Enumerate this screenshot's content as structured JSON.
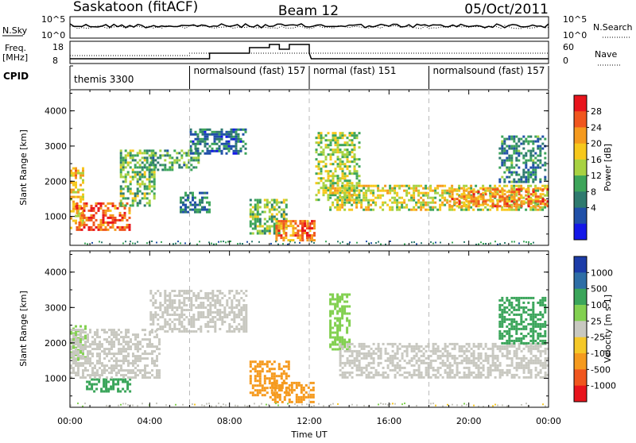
{
  "header": {
    "title_left": "Saskatoon (fitACF)",
    "title_center": "Beam 12",
    "title_right": "05/Oct/2011"
  },
  "status_panels": {
    "nsky_label": "N.Sky",
    "nsky_ticks": [
      "10^5",
      "10^0"
    ],
    "nsearch_label": "N.Search",
    "nsearch_ticks": [
      "10^5",
      "10^0"
    ],
    "freq_label_1": "Freq.",
    "freq_label_2": "[MHz]",
    "freq_ticks": [
      "18",
      "8"
    ],
    "nave_label": "Nave",
    "nave_ticks": [
      "60",
      "0"
    ],
    "cpid_label": "CPID"
  },
  "chart_data": [
    {
      "type": "heatmap",
      "name": "power",
      "ylabel": "Slant Range [km]",
      "ylim": [
        180,
        4600
      ],
      "yticks": [
        "1000",
        "2000",
        "3000",
        "4000"
      ],
      "colorbar_label": "Power [dB]",
      "colorbar_ticks": [
        "28",
        "24",
        "20",
        "16",
        "12",
        "8",
        "4"
      ],
      "colorbar_colors": [
        "#e8141c",
        "#f0561e",
        "#f59a1e",
        "#f7c81c",
        "#a8d242",
        "#3da55a",
        "#2e7a6e",
        "#2050a8",
        "#1418e8"
      ],
      "regions": [
        {
          "t": [
            0.0,
            0.6
          ],
          "r": [
            700,
            2400
          ],
          "level": 20
        },
        {
          "t": [
            0.3,
            3.0
          ],
          "r": [
            600,
            1400
          ],
          "level": 26
        },
        {
          "t": [
            2.5,
            4.2
          ],
          "r": [
            1300,
            2900
          ],
          "level": 14
        },
        {
          "t": [
            4.0,
            6.5
          ],
          "r": [
            2300,
            2900
          ],
          "level": 12
        },
        {
          "t": [
            6.0,
            8.8
          ],
          "r": [
            2800,
            3500
          ],
          "level": 8
        },
        {
          "t": [
            5.5,
            7.0
          ],
          "r": [
            1100,
            1700
          ],
          "level": 9
        },
        {
          "t": [
            9.0,
            10.8
          ],
          "r": [
            500,
            1500
          ],
          "level": 14
        },
        {
          "t": [
            10.3,
            12.0
          ],
          "r": [
            300,
            900
          ],
          "level": 24
        },
        {
          "t": [
            11.6,
            12.2
          ],
          "r": [
            300,
            900
          ],
          "level": 28
        },
        {
          "t": [
            12.3,
            14.5
          ],
          "r": [
            1500,
            3400
          ],
          "level": 16
        },
        {
          "t": [
            13.0,
            24.0
          ],
          "r": [
            1200,
            1900
          ],
          "level": 18
        },
        {
          "t": [
            19.0,
            24.0
          ],
          "r": [
            1300,
            1800
          ],
          "level": 24
        },
        {
          "t": [
            21.5,
            23.8
          ],
          "r": [
            2000,
            3300
          ],
          "level": 10
        }
      ]
    },
    {
      "type": "heatmap",
      "name": "velocity",
      "ylabel": "Slant Range [km]",
      "ylim": [
        180,
        4600
      ],
      "yticks": [
        "1000",
        "2000",
        "3000",
        "4000"
      ],
      "colorbar_label": "Velocity [m s-1]",
      "colorbar_ticks": [
        "1000",
        "500",
        "100",
        "25",
        "-25",
        "-100",
        "-500",
        "-1000"
      ],
      "colorbar_colors": [
        "#1c3ca8",
        "#2e6ea6",
        "#3aa55a",
        "#82d050",
        "#c8c8c0",
        "#f5c828",
        "#f59a1e",
        "#f0561e",
        "#e8141c"
      ],
      "regions": [
        {
          "t": [
            0.0,
            0.8
          ],
          "r": [
            1500,
            2500
          ],
          "v": 80
        },
        {
          "t": [
            0.8,
            3.0
          ],
          "r": [
            600,
            1000
          ],
          "v": 150
        },
        {
          "t": [
            0.0,
            4.5
          ],
          "r": [
            1000,
            2400
          ],
          "v": 0
        },
        {
          "t": [
            4.0,
            8.8
          ],
          "r": [
            2300,
            3500
          ],
          "v": 0
        },
        {
          "t": [
            9.0,
            11.0
          ],
          "r": [
            500,
            1500
          ],
          "v": -300
        },
        {
          "t": [
            10.0,
            12.2
          ],
          "r": [
            300,
            900
          ],
          "v": -400
        },
        {
          "t": [
            13.0,
            14.0
          ],
          "r": [
            1800,
            3400
          ],
          "v": 80
        },
        {
          "t": [
            13.5,
            24.0
          ],
          "r": [
            1000,
            2000
          ],
          "v": 0
        },
        {
          "t": [
            21.5,
            23.8
          ],
          "r": [
            2000,
            3300
          ],
          "v": 300
        }
      ]
    }
  ],
  "cpid_segments": [
    {
      "label": "themis 3300",
      "start": 0
    },
    {
      "label": "normalsound (fast) 157",
      "start": 6
    },
    {
      "label": "normal (fast) 151",
      "start": 12
    },
    {
      "label": "normalsound (fast) 157",
      "start": 18
    }
  ],
  "xaxis": {
    "label": "Time UT",
    "ticks": [
      "00:00",
      "04:00",
      "08:00",
      "12:00",
      "16:00",
      "20:00",
      "00:00"
    ]
  }
}
